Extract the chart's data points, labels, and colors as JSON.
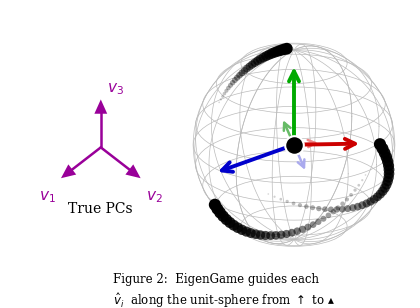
{
  "bg_color": "#ffffff",
  "purple_color": "#990099",
  "green_color": "#00aa00",
  "red_color": "#cc0000",
  "blue_color": "#0000cc",
  "light_green_color": "#66bb66",
  "light_red_color": "#ee8888",
  "light_blue_color": "#aaaaee",
  "sphere_color": "#bbbbbb",
  "track_color": "#111111",
  "title_text": "True PCs",
  "v1_label": "$v_1$",
  "v2_label": "$v_2$",
  "v3_label": "$v_3$",
  "caption": "Figure 2:  EigenGame guides each",
  "caption2": "$\\hat{v}_i$  along the unit-sphere from $\\uparrow$ to $\\blacktriangle$",
  "fig_width": 4.2,
  "fig_height": 3.08,
  "dpi": 100
}
